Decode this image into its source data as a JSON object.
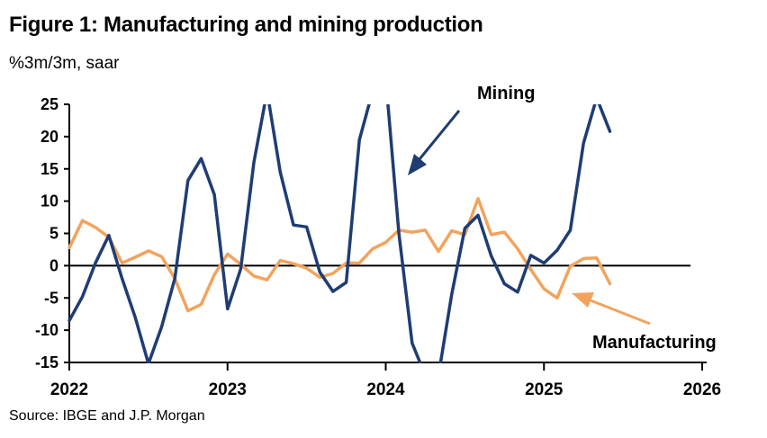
{
  "header": {
    "title": "Figure 1: Manufacturing and mining production",
    "subtitle": "%3m/3m, saar"
  },
  "footer": {
    "source": "Source: IBGE and J.P. Morgan"
  },
  "chart_data": {
    "type": "line",
    "title": "Figure 1: Manufacturing and mining production",
    "subtitle": "%3m/3m, saar",
    "xlabel": "",
    "ylabel": "",
    "xlim": [
      "2022-01",
      "2026-01"
    ],
    "ylim": [
      -15,
      25
    ],
    "yticks": [
      25,
      20,
      15,
      10,
      5,
      0,
      -5,
      -10,
      -15
    ],
    "xticks": [
      "2022",
      "2023",
      "2024",
      "2025",
      "2026"
    ],
    "grid": false,
    "legend": "none",
    "x": [
      "2022-01",
      "2022-02",
      "2022-03",
      "2022-04",
      "2022-05",
      "2022-06",
      "2022-07",
      "2022-08",
      "2022-09",
      "2022-10",
      "2022-11",
      "2022-12",
      "2023-01",
      "2023-02",
      "2023-03",
      "2023-04",
      "2023-05",
      "2023-06",
      "2023-07",
      "2023-08",
      "2023-09",
      "2023-10",
      "2023-11",
      "2023-12",
      "2024-01",
      "2024-02",
      "2024-03",
      "2024-04",
      "2024-05",
      "2024-06",
      "2024-07",
      "2024-08",
      "2024-09",
      "2024-10",
      "2024-11",
      "2024-12",
      "2025-01",
      "2025-02",
      "2025-03",
      "2025-04",
      "2025-05",
      "2025-06"
    ],
    "series": [
      {
        "name": "Mining",
        "color": "#1f3d73",
        "values": [
          -8.5,
          -4.8,
          0.5,
          4.7,
          -2.0,
          -8.0,
          -15.2,
          -9.5,
          -2.0,
          13.2,
          16.6,
          11.0,
          -6.7,
          -0.5,
          16.0,
          27.0,
          14.5,
          6.3,
          6.0,
          -1.0,
          -4.0,
          -2.6,
          19.5,
          27.0,
          29.0,
          5.0,
          -12.0,
          -17.0,
          -17.0,
          -4.5,
          5.8,
          7.8,
          1.5,
          -2.8,
          -4.1,
          1.6,
          0.4,
          2.4,
          5.5,
          19.0,
          26.0,
          20.8
        ]
      },
      {
        "name": "Manufacturing",
        "color": "#f2a35e",
        "values": [
          2.8,
          7.0,
          5.9,
          4.4,
          0.4,
          1.3,
          2.3,
          1.4,
          -2.0,
          -7.0,
          -6.0,
          -1.4,
          1.8,
          0.2,
          -1.6,
          -2.2,
          0.8,
          0.3,
          -0.4,
          -1.8,
          -1.2,
          0.4,
          0.4,
          2.6,
          3.6,
          5.5,
          5.2,
          5.5,
          2.2,
          5.4,
          4.8,
          10.4,
          4.8,
          5.2,
          2.6,
          -0.6,
          -3.6,
          -5.0,
          -0.1,
          1.1,
          1.2,
          -2.8
        ]
      }
    ],
    "annotations": [
      {
        "text": "Mining",
        "series": "Mining"
      },
      {
        "text": "Manufacturing",
        "series": "Manufacturing"
      }
    ]
  }
}
